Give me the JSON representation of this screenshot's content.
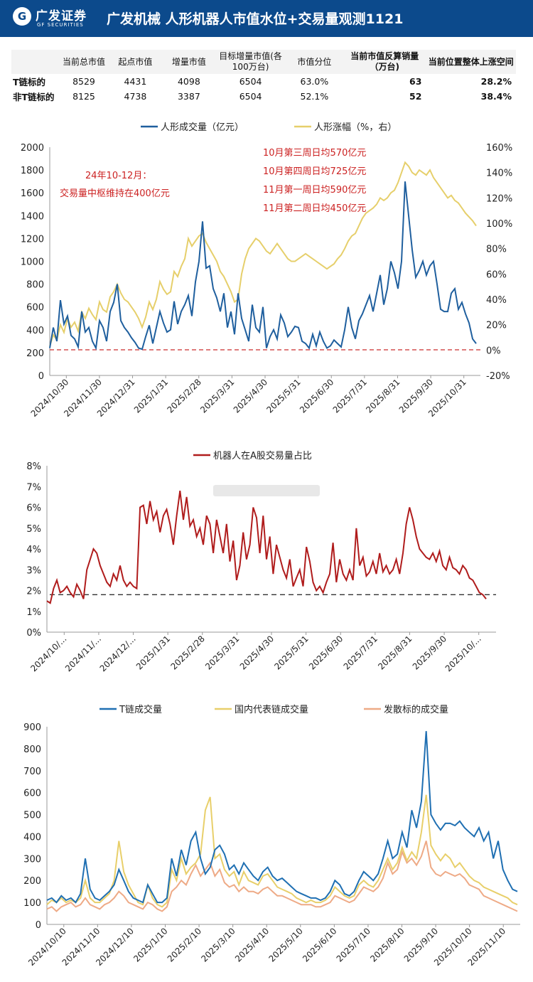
{
  "header": {
    "brand_cn": "广发证券",
    "brand_en": "GF SECURITIES",
    "title": "广发机械   人形机器人市值水位+交易量观测1121",
    "bg": "#0c4a8c"
  },
  "table": {
    "columns": [
      "",
      "当前总市值",
      "起点市值",
      "增量市值",
      "目标增量市值(各100万台)",
      "市值分位",
      "当前市值反算销量（万台)",
      "当前位置整体上涨空间"
    ],
    "rows": [
      [
        "T链标的",
        "8529",
        "4431",
        "4098",
        "6504",
        "63.0%",
        "63",
        "28.2%"
      ],
      [
        "非T链标的",
        "8125",
        "4738",
        "3387",
        "6504",
        "52.1%",
        "52",
        "38.4%"
      ]
    ]
  },
  "chart_data": [
    {
      "type": "line",
      "title": "",
      "legend": [
        "人形成交量（亿元）",
        "人形涨幅（%，右）"
      ],
      "colors": [
        "#1f5f9e",
        "#e6cf6b"
      ],
      "x_ticks": [
        "2024/10/30",
        "2024/11/30",
        "2024/12/31",
        "2025/1/31",
        "2025/2/28",
        "2025/3/31",
        "2025/4/30",
        "2025/5/31",
        "2025/6/30",
        "2025/7/31",
        "2025/8/31",
        "2025/9/30",
        "2025/10/31"
      ],
      "ylim_left": [
        0,
        2000
      ],
      "yticks_left": [
        "0",
        "200",
        "400",
        "600",
        "800",
        "1000",
        "1200",
        "1400",
        "1600",
        "1800",
        "2000"
      ],
      "ylim_right": [
        -20,
        160
      ],
      "yticks_right": [
        "-20%",
        "0%",
        "20%",
        "40%",
        "60%",
        "80%",
        "100%",
        "120%",
        "140%",
        "160%"
      ],
      "reference_line": 225,
      "annotations_left": [
        "24年10-12月：",
        "交易量中枢维持在400亿元"
      ],
      "annotations_right": [
        "10月第三周日均570亿元",
        "10月第四周日均725亿元",
        "11月第一周日均590亿元",
        "11月第二周日均450亿元"
      ],
      "series": [
        {
          "name": "人形成交量（亿元）",
          "values": [
            240,
            420,
            300,
            660,
            450,
            520,
            350,
            320,
            250,
            560,
            380,
            420,
            300,
            240,
            480,
            420,
            300,
            560,
            640,
            800,
            480,
            420,
            380,
            330,
            290,
            240,
            230,
            340,
            440,
            280,
            420,
            560,
            460,
            380,
            400,
            650,
            450,
            560,
            620,
            700,
            520,
            820,
            1000,
            1350,
            940,
            960,
            760,
            680,
            560,
            720,
            420,
            560,
            360,
            720,
            500,
            400,
            300,
            620,
            420,
            380,
            600,
            240,
            340,
            400,
            320,
            530,
            460,
            340,
            380,
            430,
            420,
            300,
            280,
            240,
            360,
            260,
            380,
            300,
            240,
            260,
            310,
            280,
            250,
            400,
            600,
            420,
            320,
            480,
            540,
            620,
            700,
            560,
            720,
            880,
            620,
            760,
            1000,
            900,
            760,
            1000,
            1700,
            1400,
            1100,
            860,
            920,
            1000,
            880,
            960,
            1000,
            800,
            580,
            560,
            560,
            720,
            760,
            580,
            640,
            540,
            460,
            320,
            280
          ]
        },
        {
          "name": "人形涨幅（%，右）",
          "values": [
            3,
            12,
            8,
            20,
            14,
            25,
            18,
            22,
            15,
            30,
            25,
            33,
            28,
            24,
            38,
            32,
            30,
            42,
            46,
            52,
            45,
            40,
            38,
            34,
            30,
            25,
            18,
            26,
            38,
            32,
            40,
            54,
            48,
            44,
            46,
            62,
            58,
            66,
            72,
            88,
            82,
            86,
            90,
            92,
            85,
            80,
            75,
            70,
            62,
            58,
            52,
            46,
            38,
            40,
            60,
            72,
            80,
            84,
            88,
            86,
            82,
            78,
            76,
            80,
            84,
            80,
            76,
            72,
            70,
            70,
            72,
            74,
            76,
            74,
            72,
            70,
            68,
            66,
            64,
            66,
            68,
            72,
            75,
            80,
            86,
            90,
            92,
            98,
            104,
            108,
            110,
            112,
            115,
            120,
            118,
            120,
            124,
            126,
            132,
            140,
            148,
            145,
            140,
            138,
            142,
            140,
            138,
            142,
            136,
            132,
            128,
            124,
            120,
            122,
            118,
            116,
            112,
            108,
            105,
            102,
            98
          ]
        }
      ]
    },
    {
      "type": "line",
      "title": "",
      "legend": [
        "机器人在A股交易量占比"
      ],
      "colors": [
        "#b01c1c"
      ],
      "x_ticks": [
        "2024/10/...",
        "2024/11/...",
        "2024/12/...",
        "2025/1/31",
        "2025/2/28",
        "2025/3/31",
        "2025/4/30",
        "2025/5/31",
        "2025/6/30",
        "2025/7/31",
        "2025/8/31",
        "2025/9/30",
        "2025/10/..."
      ],
      "ylim": [
        0,
        8
      ],
      "yticks": [
        "0%",
        "1%",
        "2%",
        "3%",
        "4%",
        "5%",
        "6%",
        "7%",
        "8%"
      ],
      "reference_line": 1.8,
      "series": [
        {
          "name": "机器人在A股交易量占比",
          "values": [
            1.5,
            1.4,
            2.1,
            2.5,
            1.9,
            2.0,
            2.2,
            1.9,
            1.7,
            2.3,
            2.0,
            1.6,
            3.0,
            3.5,
            4.0,
            3.8,
            3.2,
            2.8,
            2.4,
            2.2,
            2.8,
            2.5,
            3.2,
            2.5,
            2.2,
            2.4,
            2.2,
            2.1,
            6.0,
            6.1,
            5.2,
            6.3,
            5.4,
            5.8,
            4.8,
            5.6,
            5.9,
            5.2,
            4.2,
            5.6,
            6.8,
            5.4,
            6.5,
            5.1,
            5.4,
            4.6,
            5.0,
            4.2,
            5.6,
            5.2,
            3.8,
            5.4,
            4.6,
            3.8,
            5.2,
            3.4,
            4.4,
            2.5,
            3.2,
            4.8,
            3.5,
            4.2,
            6.0,
            5.5,
            3.8,
            5.6,
            3.5,
            4.6,
            2.8,
            4.2,
            3.6,
            3.0,
            2.6,
            3.5,
            2.2,
            2.6,
            3.0,
            2.2,
            4.1,
            3.4,
            2.4,
            2.0,
            2.2,
            1.9,
            2.4,
            2.8,
            4.3,
            2.4,
            3.5,
            2.8,
            2.5,
            3.0,
            2.5,
            5.0,
            3.2,
            3.6,
            2.7,
            2.9,
            3.4,
            2.8,
            3.8,
            2.9,
            3.2,
            2.8,
            3.0,
            3.5,
            2.8,
            3.8,
            5.2,
            6.0,
            5.4,
            4.6,
            4.0,
            3.8,
            3.6,
            3.5,
            3.8,
            3.4,
            3.9,
            3.2,
            3.0,
            3.6,
            3.1,
            3.0,
            2.8,
            3.2,
            3.0,
            2.6,
            2.5,
            2.2,
            1.9,
            1.8,
            1.6
          ]
        }
      ]
    },
    {
      "type": "line",
      "title": "",
      "legend": [
        "T链成交量",
        "国内代表链成交量",
        "发散标的成交量"
      ],
      "colors": [
        "#1f6fb2",
        "#e8cf6a",
        "#eeaa86"
      ],
      "x_ticks": [
        "2024/10/10",
        "2024/11/10",
        "2024/12/10",
        "2025/1/10",
        "2025/2/10",
        "2025/3/10",
        "2025/4/10",
        "2025/5/10",
        "2025/6/10",
        "2025/7/10",
        "2025/8/10",
        "2025/9/10",
        "2025/10/10",
        "2025/11/10"
      ],
      "ylim": [
        0,
        900
      ],
      "yticks": [
        "0",
        "100",
        "200",
        "300",
        "400",
        "500",
        "600",
        "700",
        "800",
        "900"
      ],
      "series": [
        {
          "name": "T链成交量",
          "values": [
            110,
            120,
            100,
            130,
            110,
            120,
            100,
            140,
            300,
            160,
            120,
            110,
            130,
            150,
            180,
            250,
            200,
            150,
            120,
            110,
            100,
            180,
            140,
            100,
            100,
            120,
            300,
            220,
            340,
            270,
            380,
            420,
            300,
            230,
            260,
            340,
            360,
            320,
            250,
            270,
            230,
            280,
            250,
            220,
            200,
            240,
            260,
            220,
            200,
            210,
            190,
            170,
            150,
            140,
            130,
            120,
            120,
            110,
            120,
            150,
            200,
            180,
            140,
            130,
            150,
            200,
            240,
            220,
            200,
            230,
            300,
            380,
            300,
            320,
            420,
            350,
            520,
            440,
            560,
            880,
            500,
            460,
            430,
            460,
            460,
            450,
            470,
            440,
            420,
            400,
            440,
            380,
            420,
            300,
            380,
            250,
            200,
            160,
            150
          ]
        },
        {
          "name": "国内代表链成交量",
          "values": [
            90,
            110,
            100,
            120,
            100,
            110,
            100,
            120,
            200,
            120,
            100,
            100,
            120,
            140,
            200,
            380,
            240,
            180,
            140,
            100,
            90,
            180,
            120,
            90,
            80,
            100,
            250,
            200,
            300,
            230,
            260,
            280,
            320,
            520,
            580,
            300,
            320,
            250,
            220,
            240,
            180,
            240,
            200,
            190,
            180,
            220,
            230,
            200,
            170,
            160,
            150,
            140,
            120,
            110,
            100,
            110,
            100,
            100,
            110,
            130,
            170,
            150,
            130,
            120,
            130,
            180,
            200,
            180,
            170,
            200,
            250,
            300,
            250,
            280,
            350,
            290,
            330,
            300,
            420,
            590,
            360,
            320,
            290,
            320,
            300,
            260,
            280,
            250,
            220,
            200,
            190,
            170,
            160,
            150,
            140,
            130,
            120,
            100,
            90
          ]
        },
        {
          "name": "发散标的成交量",
          "values": [
            70,
            80,
            60,
            80,
            90,
            100,
            80,
            90,
            120,
            90,
            80,
            70,
            90,
            100,
            120,
            150,
            130,
            100,
            90,
            80,
            70,
            100,
            90,
            70,
            60,
            80,
            150,
            170,
            200,
            180,
            230,
            270,
            220,
            250,
            280,
            220,
            250,
            190,
            170,
            180,
            150,
            170,
            150,
            150,
            140,
            160,
            170,
            150,
            130,
            130,
            120,
            110,
            100,
            90,
            90,
            90,
            80,
            80,
            90,
            100,
            130,
            120,
            110,
            100,
            110,
            140,
            170,
            160,
            150,
            170,
            210,
            280,
            230,
            250,
            330,
            280,
            300,
            270,
            310,
            380,
            260,
            230,
            220,
            240,
            230,
            220,
            230,
            210,
            180,
            170,
            160,
            130,
            120,
            110,
            100,
            90,
            80,
            70,
            60
          ]
        }
      ]
    }
  ]
}
